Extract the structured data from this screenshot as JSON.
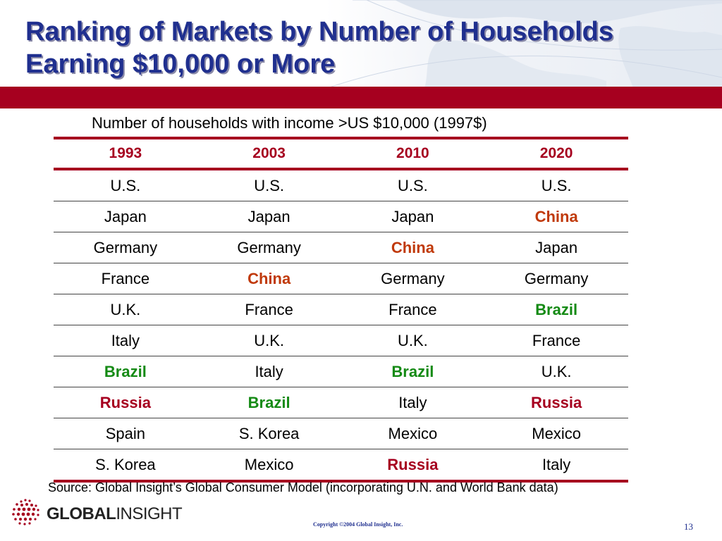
{
  "colors": {
    "title": "#1f2f8f",
    "band": "#a6001f",
    "highlight_orange": "#c0390a",
    "highlight_green": "#148a14",
    "highlight_red": "#a6001f"
  },
  "slide": {
    "title_line1": "Ranking of Markets by Number of Households",
    "title_line2": "Earning $10,000 or More",
    "subtitle": "Number of households with income >US $10,000 (1997$)"
  },
  "table": {
    "headers": [
      "1993",
      "2003",
      "2010",
      "2020"
    ],
    "rows": [
      [
        "U.S.",
        "U.S.",
        "U.S.",
        "U.S."
      ],
      [
        "Japan",
        "Japan",
        "Japan",
        "China"
      ],
      [
        "Germany",
        "Germany",
        "China",
        "Japan"
      ],
      [
        "France",
        "China",
        "Germany",
        "Germany"
      ],
      [
        "U.K.",
        "France",
        "France",
        "Brazil"
      ],
      [
        "Italy",
        "U.K.",
        "U.K.",
        "France"
      ],
      [
        "Brazil",
        "Italy",
        "Brazil",
        "U.K."
      ],
      [
        "Russia",
        "Brazil",
        "Italy",
        "Russia"
      ],
      [
        "Spain",
        "S. Korea",
        "Mexico",
        "Mexico"
      ],
      [
        "S. Korea",
        "Mexico",
        "Russia",
        "Italy"
      ]
    ],
    "highlights": {
      "China": "hl-orange",
      "Brazil": "hl-green",
      "Russia": "hl-red"
    }
  },
  "footer": {
    "source": "Source: Global Insight’s Global Consumer Model (incorporating U.N. and World Bank data)",
    "logo_bold": "GLOBAL",
    "logo_normal": "INSIGHT",
    "copyright": "Copyright ©2004 Global Insight, Inc.",
    "page_number": "13"
  }
}
